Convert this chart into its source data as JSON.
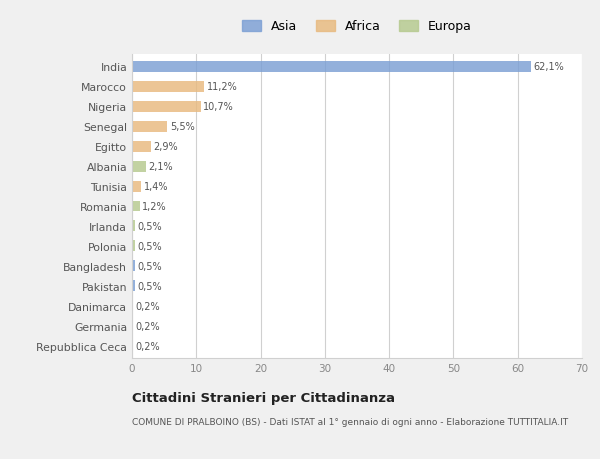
{
  "countries": [
    "India",
    "Marocco",
    "Nigeria",
    "Senegal",
    "Egitto",
    "Albania",
    "Tunisia",
    "Romania",
    "Irlanda",
    "Polonia",
    "Bangladesh",
    "Pakistan",
    "Danimarca",
    "Germania",
    "Repubblica Ceca"
  ],
  "values": [
    62.1,
    11.2,
    10.7,
    5.5,
    2.9,
    2.1,
    1.4,
    1.2,
    0.5,
    0.5,
    0.5,
    0.5,
    0.2,
    0.2,
    0.2
  ],
  "labels": [
    "62,1%",
    "11,2%",
    "10,7%",
    "5,5%",
    "2,9%",
    "2,1%",
    "1,4%",
    "1,2%",
    "0,5%",
    "0,5%",
    "0,5%",
    "0,5%",
    "0,2%",
    "0,2%",
    "0,2%"
  ],
  "colors": [
    "#7b9fd4",
    "#e8b97e",
    "#e8b97e",
    "#e8b97e",
    "#e8b97e",
    "#b5c98e",
    "#e8b97e",
    "#b5c98e",
    "#b5c98e",
    "#b5c98e",
    "#7b9fd4",
    "#7b9fd4",
    "#b5c98e",
    "#b5c98e",
    "#b5c98e"
  ],
  "legend_labels": [
    "Asia",
    "Africa",
    "Europa"
  ],
  "legend_colors": [
    "#7b9fd4",
    "#e8b97e",
    "#b5c98e"
  ],
  "xlim": [
    0,
    70
  ],
  "xticks": [
    0,
    10,
    20,
    30,
    40,
    50,
    60,
    70
  ],
  "title": "Cittadini Stranieri per Cittadinanza",
  "subtitle": "COMUNE DI PRALBOINO (BS) - Dati ISTAT al 1° gennaio di ogni anno - Elaborazione TUTTITALIA.IT",
  "bg_color": "#f0f0f0",
  "bar_bg_color": "#ffffff",
  "grid_color": "#d0d0d0"
}
